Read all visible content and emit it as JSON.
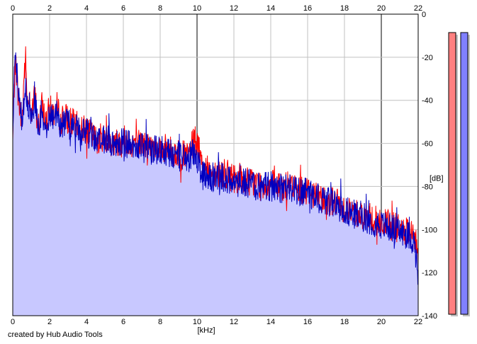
{
  "credit": "created by Hub Audio Tools",
  "colors": {
    "background": "#ffffff",
    "plot_background": "#ffffff",
    "grid": "#c0c0c0",
    "grid_major": "#808080",
    "axis": "#000000",
    "fill": "#c8c8ff",
    "left_channel": "#ff0000",
    "right_channel": "#0000c0",
    "meter_left": "#ff8080",
    "meter_right": "#8080ff",
    "meter_shadow": "#c0c0c0"
  },
  "chart_data": {
    "type": "line",
    "title": "",
    "xlabel": "[kHz]",
    "ylabel": "[dB]",
    "xlim": [
      0,
      22
    ],
    "ylim": [
      -140,
      0
    ],
    "xticks": [
      "0",
      "2",
      "4",
      "6",
      "8",
      "10",
      "12",
      "14",
      "16",
      "18",
      "20",
      "22"
    ],
    "yticks": [
      "0",
      "-20",
      "-40",
      "-60",
      "-80",
      "-100",
      "-120",
      "-140"
    ],
    "grid": true,
    "legend": "none",
    "series": [
      {
        "color": "#ff0000",
        "x": [
          0.0,
          0.05,
          0.1,
          0.15,
          0.2,
          0.3,
          0.4,
          0.5,
          0.6,
          0.7,
          0.8,
          0.9,
          1.0,
          1.2,
          1.4,
          1.6,
          1.8,
          2.0,
          2.2,
          2.4,
          2.6,
          2.8,
          3.0,
          3.2,
          3.5,
          4.0,
          4.5,
          5.0,
          5.5,
          6.0,
          6.5,
          7.0,
          7.5,
          8.0,
          8.5,
          9.0,
          9.5,
          9.9,
          10.3,
          10.6,
          11.0,
          11.5,
          12.0,
          12.5,
          13.0,
          13.5,
          14.0,
          14.5,
          15.0,
          15.5,
          16.0,
          16.5,
          17.0,
          17.5,
          18.0,
          18.5,
          19.0,
          19.5,
          20.0,
          20.5,
          21.0,
          21.5,
          21.8,
          22.0
        ],
        "y": [
          -60,
          -40,
          -28,
          -20,
          -27,
          -38,
          -45,
          -52,
          -30,
          -21,
          -42,
          -37,
          -45,
          -38,
          -52,
          -42,
          -50,
          -44,
          -46,
          -43,
          -50,
          -47,
          -49,
          -50,
          -52,
          -54,
          -58,
          -57,
          -60,
          -58,
          -59,
          -60,
          -62,
          -62,
          -63,
          -65,
          -66,
          -58,
          -70,
          -73,
          -73,
          -74,
          -76,
          -77,
          -78,
          -79,
          -79,
          -80,
          -80,
          -81,
          -82,
          -84,
          -86,
          -87,
          -90,
          -92,
          -93,
          -95,
          -97,
          -98,
          -100,
          -102,
          -104,
          -110
        ]
      },
      {
        "color": "#0000c0",
        "x": [
          0.0,
          0.05,
          0.1,
          0.15,
          0.2,
          0.3,
          0.4,
          0.5,
          0.6,
          0.7,
          0.8,
          0.9,
          1.0,
          1.2,
          1.4,
          1.6,
          1.8,
          2.0,
          2.2,
          2.4,
          2.6,
          2.8,
          3.0,
          3.2,
          3.5,
          4.0,
          4.5,
          5.0,
          5.5,
          6.0,
          6.5,
          7.0,
          7.5,
          8.0,
          8.5,
          9.0,
          9.5,
          9.9,
          10.3,
          10.6,
          11.0,
          11.5,
          12.0,
          12.5,
          13.0,
          13.5,
          14.0,
          14.5,
          15.0,
          15.5,
          16.0,
          16.5,
          17.0,
          17.5,
          18.0,
          18.5,
          19.0,
          19.5,
          20.0,
          20.5,
          21.0,
          21.5,
          21.8,
          22.0
        ],
        "y": [
          -62,
          -35,
          -20,
          -18,
          -26,
          -35,
          -45,
          -48,
          -40,
          -33,
          -46,
          -41,
          -47,
          -41,
          -53,
          -45,
          -52,
          -46,
          -48,
          -45,
          -52,
          -50,
          -51,
          -52,
          -53,
          -55,
          -59,
          -58,
          -60,
          -59,
          -61,
          -62,
          -63,
          -63,
          -64,
          -66,
          -67,
          -64,
          -75,
          -77,
          -75,
          -76,
          -77,
          -78,
          -79,
          -80,
          -80,
          -81,
          -81,
          -82,
          -83,
          -85,
          -87,
          -88,
          -91,
          -93,
          -94,
          -96,
          -98,
          -99,
          -101,
          -103,
          -106,
          -122
        ]
      }
    ],
    "fill_color": "#c8c8ff",
    "level_meters": [
      {
        "color": "#ff8080",
        "level": 1.0
      },
      {
        "color": "#8080ff",
        "level": 1.0
      }
    ]
  }
}
